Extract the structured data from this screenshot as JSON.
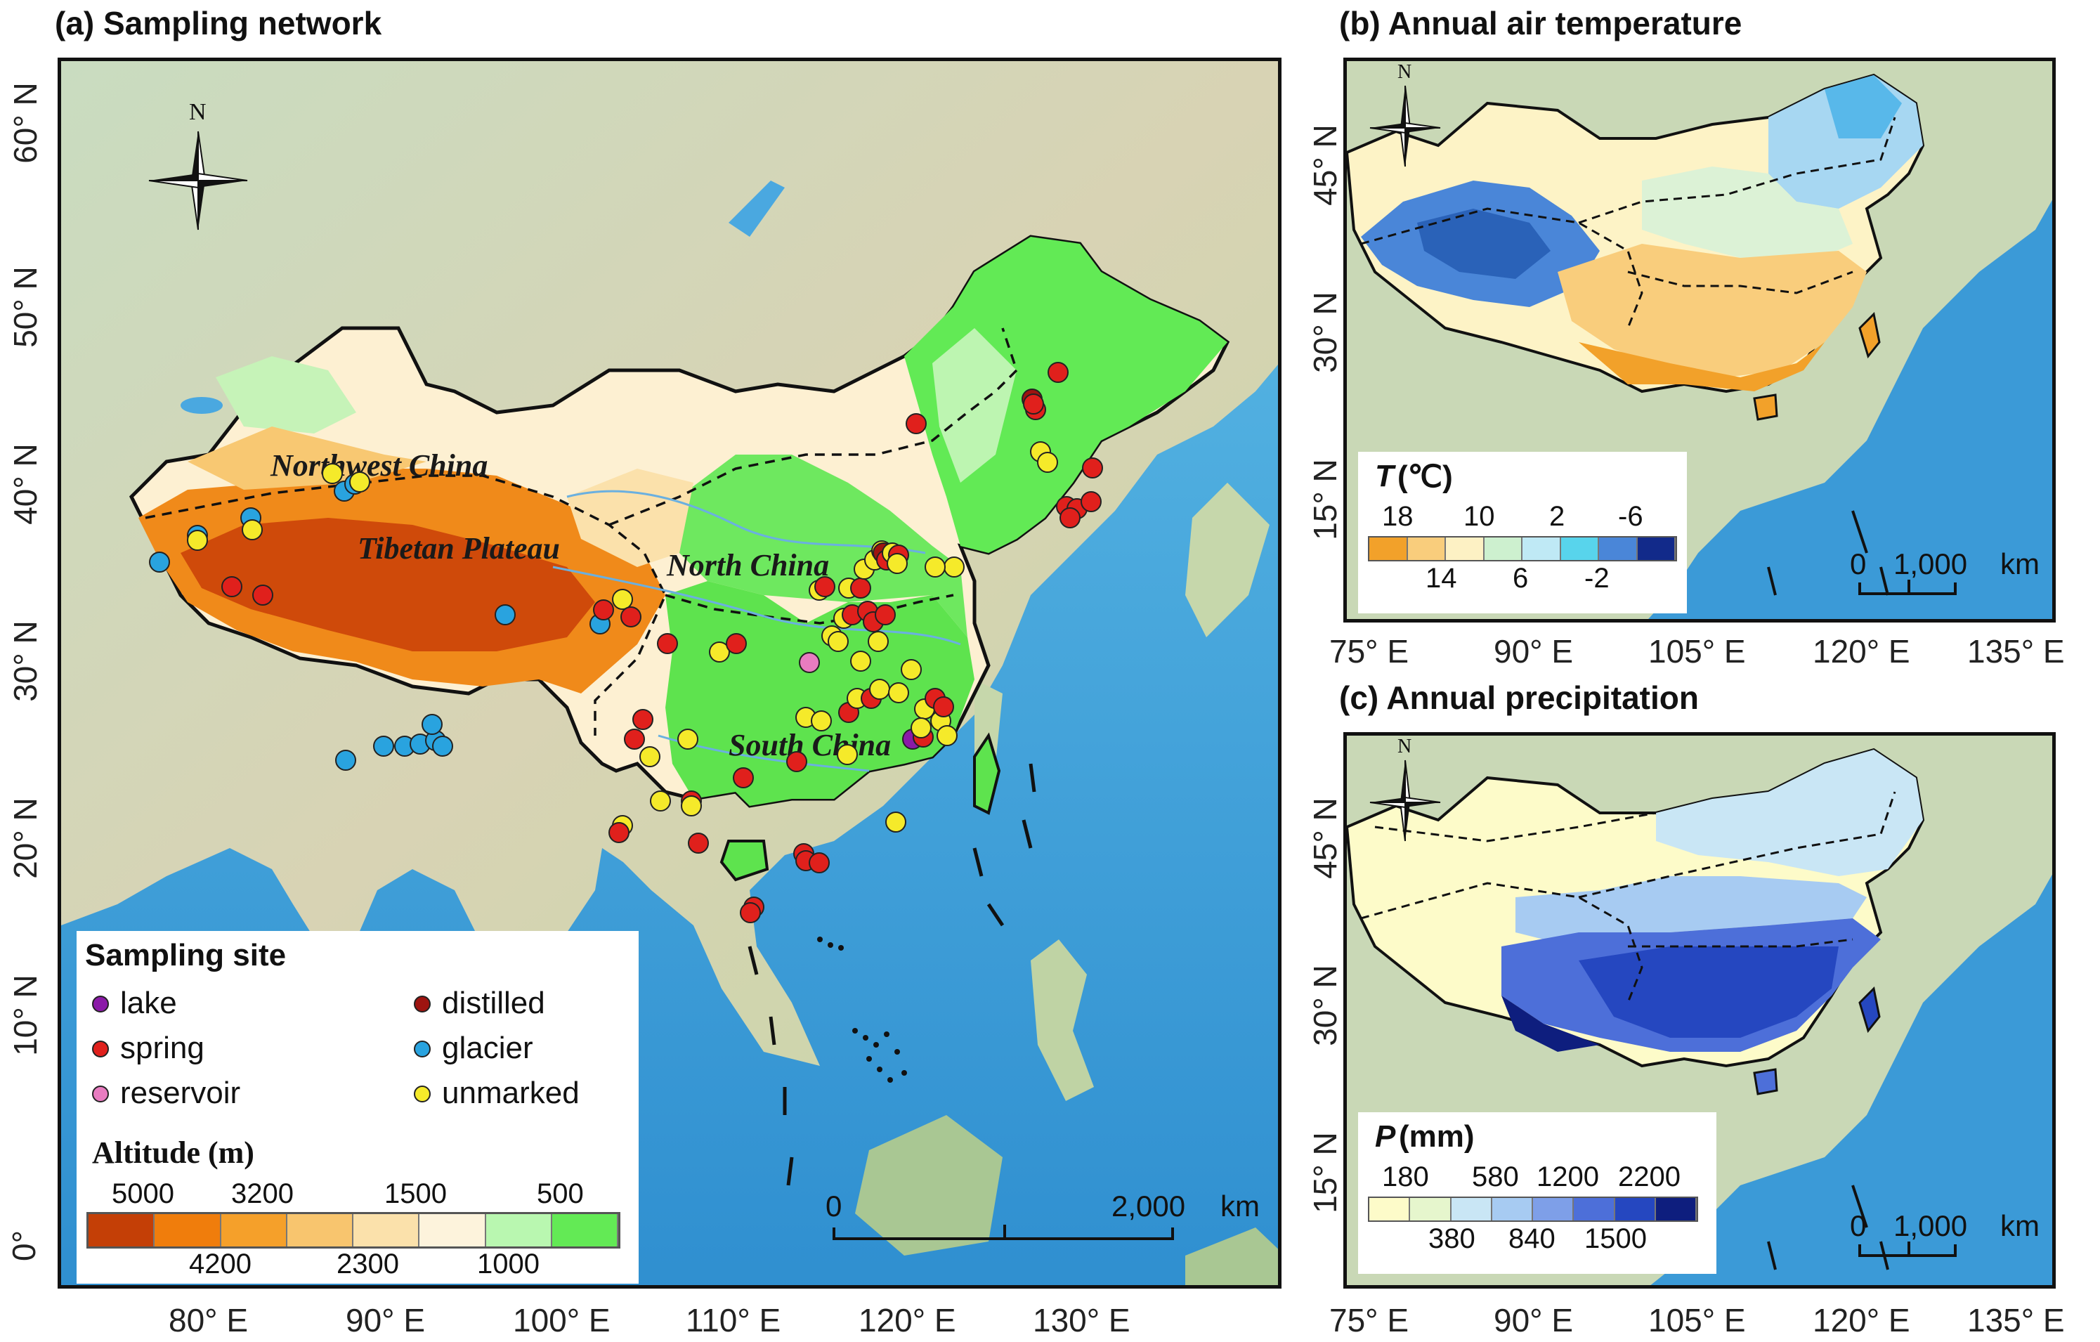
{
  "panels": {
    "a": {
      "title": "(a) Sampling network"
    },
    "b": {
      "title": "(b) Annual air temperature"
    },
    "c": {
      "title": "(c) Annual  precipitation"
    }
  },
  "north_label": "N",
  "axis_a": {
    "lat": [
      "60° N",
      "50° N",
      "40° N",
      "30° N",
      "20° N",
      "10° N",
      "0°"
    ],
    "lon": [
      "80° E",
      "90° E",
      "100° E",
      "110° E",
      "120° E",
      "130° E"
    ]
  },
  "axis_b": {
    "lat": [
      "45° N",
      "30° N",
      "15° N"
    ]
  },
  "axis_c": {
    "lat": [
      "45° N",
      "30° N",
      "15° N"
    ]
  },
  "axis_bottom": {
    "lon": [
      "75° E",
      "90° E",
      "105° E",
      "120° E",
      "135° E"
    ]
  },
  "regions": {
    "northwest": "Northwest China",
    "tibet": "Tibetan Plateau",
    "north": "North China",
    "south": "South China"
  },
  "sampling_legend": {
    "title": "Sampling site",
    "items": [
      {
        "label": "lake",
        "color": "#8b1aa8"
      },
      {
        "label": "spring",
        "color": "#e0201c"
      },
      {
        "label": "reservoir",
        "color": "#e87cc0"
      },
      {
        "label": "distilled",
        "color": "#9e1410"
      },
      {
        "label": "glacier",
        "color": "#29a3df"
      },
      {
        "label": "unmarked",
        "color": "#f5ea2a"
      }
    ]
  },
  "altitude_legend": {
    "title": "Altitude (m)",
    "top_labels": [
      "5000",
      "3200",
      "1500",
      "500"
    ],
    "bottom_labels": [
      "4200",
      "2300",
      "1000"
    ],
    "colors": [
      "#c43f06",
      "#f07d0c",
      "#f5a02a",
      "#f8c56e",
      "#fbe1ab",
      "#fdf3dc",
      "#b9f7b0",
      "#63ea55"
    ]
  },
  "temperature_legend": {
    "symbol": "T",
    "unit": "(℃)",
    "top_labels": [
      "18",
      "10",
      "2",
      "-6"
    ],
    "bottom_labels": [
      "14",
      "6",
      "-2"
    ],
    "colors": [
      "#f2a12a",
      "#f9cd7c",
      "#fdf1c4",
      "#cdf0cf",
      "#bfe9f5",
      "#58d4ec",
      "#4a86d8",
      "#122a8a"
    ]
  },
  "precipitation_legend": {
    "symbol": "P",
    "unit": "(mm)",
    "top_labels": [
      "180",
      "580",
      "1200",
      "2200"
    ],
    "bottom_labels": [
      "380",
      "840",
      "1500"
    ],
    "colors": [
      "#fdfbc9",
      "#e6f6cd",
      "#c9e6f5",
      "#a7cbf2",
      "#7e9fe8",
      "#4d6fd9",
      "#2547c0",
      "#0e1e7e"
    ]
  },
  "scalebars": {
    "a": {
      "start": "0",
      "end": "2,000",
      "unit": "km"
    },
    "b": {
      "start": "0",
      "end": "1,000",
      "unit": "km"
    },
    "c": {
      "start": "0",
      "end": "1,000",
      "unit": "km"
    }
  },
  "sites": [
    {
      "type": "glacier",
      "lon": 76,
      "lat": 39.5
    },
    {
      "type": "glacier",
      "lon": 78.2,
      "lat": 41.0
    },
    {
      "type": "unmarked",
      "lon": 78.2,
      "lat": 40.7
    },
    {
      "type": "glacier",
      "lon": 81.3,
      "lat": 42.0
    },
    {
      "type": "unmarked",
      "lon": 81.4,
      "lat": 41.3
    },
    {
      "type": "unmarked",
      "lon": 86,
      "lat": 44.5
    },
    {
      "type": "glacier",
      "lon": 86.7,
      "lat": 43.5
    },
    {
      "type": "glacier",
      "lon": 87.3,
      "lat": 43.9
    },
    {
      "type": "unmarked",
      "lon": 87.6,
      "lat": 44.0
    },
    {
      "type": "spring",
      "lon": 80.2,
      "lat": 38.1
    },
    {
      "type": "spring",
      "lon": 82.0,
      "lat": 37.6
    },
    {
      "type": "glacier",
      "lon": 96.0,
      "lat": 36.5
    },
    {
      "type": "glacier",
      "lon": 86.8,
      "lat": 28.3
    },
    {
      "type": "glacier",
      "lon": 89.0,
      "lat": 29.1
    },
    {
      "type": "glacier",
      "lon": 90.2,
      "lat": 29.1
    },
    {
      "type": "glacier",
      "lon": 91.1,
      "lat": 29.2
    },
    {
      "type": "glacier",
      "lon": 92.0,
      "lat": 29.4
    },
    {
      "type": "glacier",
      "lon": 91.8,
      "lat": 30.3
    },
    {
      "type": "glacier",
      "lon": 92.4,
      "lat": 29.1
    },
    {
      "type": "glacier",
      "lon": 101.5,
      "lat": 36.0
    },
    {
      "type": "spring",
      "lon": 101.7,
      "lat": 36.8
    },
    {
      "type": "unmarked",
      "lon": 102.8,
      "lat": 37.4
    },
    {
      "type": "spring",
      "lon": 103.3,
      "lat": 36.4
    },
    {
      "type": "spring",
      "lon": 105.4,
      "lat": 34.9
    },
    {
      "type": "unmarked",
      "lon": 108.4,
      "lat": 34.4
    },
    {
      "type": "spring",
      "lon": 109.4,
      "lat": 34.9
    },
    {
      "type": "spring",
      "lon": 104.0,
      "lat": 30.6
    },
    {
      "type": "spring",
      "lon": 103.5,
      "lat": 29.5
    },
    {
      "type": "unmarked",
      "lon": 104.4,
      "lat": 28.5
    },
    {
      "type": "unmarked",
      "lon": 106.6,
      "lat": 29.5
    },
    {
      "type": "spring",
      "lon": 109.8,
      "lat": 27.3
    },
    {
      "type": "unmarked",
      "lon": 105.0,
      "lat": 26.0
    },
    {
      "type": "spring",
      "lon": 106.8,
      "lat": 26.0
    },
    {
      "type": "unmarked",
      "lon": 106.8,
      "lat": 25.7
    },
    {
      "type": "unmarked",
      "lon": 102.8,
      "lat": 24.6
    },
    {
      "type": "spring",
      "lon": 102.6,
      "lat": 24.2
    },
    {
      "type": "spring",
      "lon": 107.2,
      "lat": 23.6
    },
    {
      "type": "spring",
      "lon": 113.3,
      "lat": 23.0
    },
    {
      "type": "spring",
      "lon": 113.4,
      "lat": 22.6
    },
    {
      "type": "spring",
      "lon": 114.2,
      "lat": 22.5
    },
    {
      "type": "spring",
      "lon": 110.4,
      "lat": 20.0
    },
    {
      "type": "spring",
      "lon": 110.2,
      "lat": 19.7
    },
    {
      "type": "reservoir",
      "lon": 113.6,
      "lat": 33.8
    },
    {
      "type": "unmarked",
      "lon": 113.4,
      "lat": 30.7
    },
    {
      "type": "spring",
      "lon": 112.9,
      "lat": 28.2
    },
    {
      "type": "unmarked",
      "lon": 114.3,
      "lat": 30.5
    },
    {
      "type": "spring",
      "lon": 115.9,
      "lat": 31.0
    },
    {
      "type": "unmarked",
      "lon": 115.8,
      "lat": 28.6
    },
    {
      "type": "unmarked",
      "lon": 116.4,
      "lat": 31.8
    },
    {
      "type": "spring",
      "lon": 117.2,
      "lat": 31.8
    },
    {
      "type": "unmarked",
      "lon": 117.7,
      "lat": 32.3
    },
    {
      "type": "unmarked",
      "lon": 118.8,
      "lat": 32.1
    },
    {
      "type": "unmarked",
      "lon": 119.5,
      "lat": 33.4
    },
    {
      "type": "unmarked",
      "lon": 120.3,
      "lat": 31.2
    },
    {
      "type": "spring",
      "lon": 120.9,
      "lat": 31.8
    },
    {
      "type": "unmarked",
      "lon": 121.2,
      "lat": 30.5
    },
    {
      "type": "spring",
      "lon": 121.4,
      "lat": 31.3
    },
    {
      "type": "unmarked",
      "lon": 121.6,
      "lat": 29.7
    },
    {
      "type": "lake",
      "lon": 119.6,
      "lat": 29.5
    },
    {
      "type": "spring",
      "lon": 120.2,
      "lat": 29.6
    },
    {
      "type": "unmarked",
      "lon": 120.1,
      "lat": 30.1
    },
    {
      "type": "unmarked",
      "lon": 118.6,
      "lat": 24.8
    },
    {
      "type": "unmarked",
      "lon": 114.2,
      "lat": 37.9
    },
    {
      "type": "spring",
      "lon": 114.5,
      "lat": 38.1
    },
    {
      "type": "unmarked",
      "lon": 114.9,
      "lat": 35.3
    },
    {
      "type": "unmarked",
      "lon": 115.3,
      "lat": 35.0
    },
    {
      "type": "unmarked",
      "lon": 115.6,
      "lat": 36.3
    },
    {
      "type": "spring",
      "lon": 116.1,
      "lat": 36.5
    },
    {
      "type": "unmarked",
      "lon": 116.6,
      "lat": 33.9
    },
    {
      "type": "spring",
      "lon": 117.0,
      "lat": 36.7
    },
    {
      "type": "spring",
      "lon": 117.3,
      "lat": 36.1
    },
    {
      "type": "unmarked",
      "lon": 117.6,
      "lat": 35.0
    },
    {
      "type": "spring",
      "lon": 118.0,
      "lat": 36.5
    },
    {
      "type": "unmarked",
      "lon": 115.9,
      "lat": 38.0
    },
    {
      "type": "spring",
      "lon": 116.6,
      "lat": 38.0
    },
    {
      "type": "unmarked",
      "lon": 116.8,
      "lat": 39.1
    },
    {
      "type": "unmarked",
      "lon": 117.4,
      "lat": 39.6
    },
    {
      "type": "unmarked",
      "lon": 117.8,
      "lat": 40.1
    },
    {
      "type": "distilled",
      "lon": 117.9,
      "lat": 40.0
    },
    {
      "type": "spring",
      "lon": 118.1,
      "lat": 39.6
    },
    {
      "type": "unmarked",
      "lon": 118.4,
      "lat": 40.0
    },
    {
      "type": "spring",
      "lon": 118.8,
      "lat": 39.9
    },
    {
      "type": "unmarked",
      "lon": 118.7,
      "lat": 39.4
    },
    {
      "type": "unmarked",
      "lon": 122.0,
      "lat": 39.2
    },
    {
      "type": "unmarked",
      "lon": 120.9,
      "lat": 39.2
    },
    {
      "type": "spring",
      "lon": 119.8,
      "lat": 47.3
    },
    {
      "type": "distilled",
      "lon": 126.5,
      "lat": 48.7
    },
    {
      "type": "spring",
      "lon": 126.7,
      "lat": 48.1
    },
    {
      "type": "spring",
      "lon": 126.6,
      "lat": 48.4
    },
    {
      "type": "spring",
      "lon": 128.0,
      "lat": 50.2
    },
    {
      "type": "unmarked",
      "lon": 127.0,
      "lat": 45.7
    },
    {
      "type": "unmarked",
      "lon": 127.4,
      "lat": 45.1
    },
    {
      "type": "spring",
      "lon": 130.0,
      "lat": 44.8
    },
    {
      "type": "spring",
      "lon": 128.5,
      "lat": 42.6
    },
    {
      "type": "spring",
      "lon": 129.1,
      "lat": 42.5
    },
    {
      "type": "spring",
      "lon": 128.7,
      "lat": 42.0
    },
    {
      "type": "spring",
      "lon": 129.9,
      "lat": 42.9
    }
  ]
}
